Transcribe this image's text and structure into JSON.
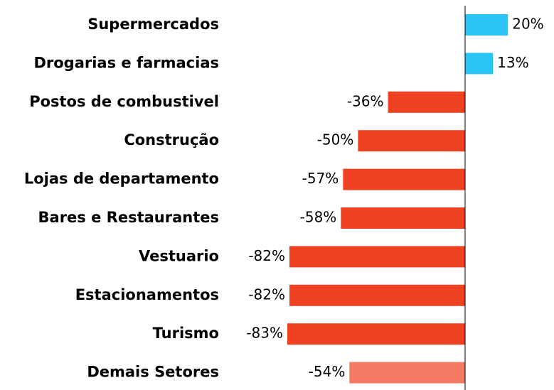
{
  "chart_data": {
    "type": "bar",
    "orientation": "horizontal",
    "categories": [
      "Supermercados",
      "Drogarias e farmacias",
      "Postos de combustivel",
      "Construção",
      "Lojas de departamento",
      "Bares e Restaurantes",
      "Vestuario",
      "Estacionamentos",
      "Turismo",
      "Demais Setores"
    ],
    "values": [
      20,
      13,
      -36,
      -50,
      -57,
      -58,
      -82,
      -82,
      -83,
      -54
    ],
    "value_labels": [
      "20%",
      "13%",
      "-36%",
      "-50%",
      "-57%",
      "-58%",
      "-82%",
      "-82%",
      "-83%",
      "-54%"
    ],
    "colors": [
      "#29c5f6",
      "#29c5f6",
      "#f04123",
      "#f04123",
      "#f04123",
      "#f04123",
      "#f04123",
      "#f04123",
      "#f04123",
      "#f47a63"
    ]
  }
}
